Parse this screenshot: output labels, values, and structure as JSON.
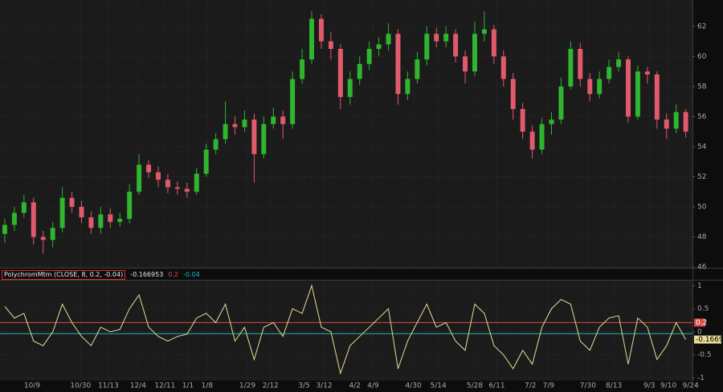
{
  "chart_data": [
    {
      "type": "candlestick",
      "open": [
        48.2,
        48.8,
        49.6,
        50.3,
        48.0,
        47.8,
        48.6,
        50.6,
        50.0,
        49.3,
        48.6,
        49.5,
        49.0,
        49.2,
        51.0,
        52.8,
        52.3,
        51.8,
        51.3,
        51.2,
        51.0,
        52.2,
        53.8,
        54.5,
        55.5,
        55.3,
        55.8,
        53.5,
        55.5,
        56.0,
        55.5,
        58.5,
        59.8,
        62.5,
        61.0,
        60.5,
        57.3,
        58.5,
        59.5,
        60.5,
        60.8,
        61.5,
        57.5,
        58.5,
        59.8,
        61.5,
        61.0,
        61.5,
        60.0,
        59.0,
        61.5,
        61.8,
        60.0,
        58.5,
        56.5,
        55.0,
        53.8,
        55.5,
        55.8,
        58.0,
        60.5,
        58.5,
        57.5,
        58.5,
        59.3,
        59.8,
        56.0,
        59.0,
        58.8,
        55.8,
        55.2,
        56.3
      ],
      "high": [
        49.2,
        50.0,
        50.8,
        50.6,
        48.4,
        49.0,
        51.3,
        51.0,
        50.4,
        49.7,
        50.0,
        49.9,
        49.6,
        51.5,
        53.5,
        53.1,
        52.7,
        52.2,
        51.7,
        51.6,
        52.6,
        54.2,
        54.9,
        57.0,
        56.0,
        56.4,
        56.2,
        56.0,
        56.6,
        56.4,
        59.0,
        60.5,
        63.0,
        62.8,
        61.6,
        60.8,
        59.0,
        60.0,
        61.0,
        61.3,
        62.2,
        61.8,
        59.0,
        60.3,
        62.0,
        61.9,
        62.0,
        61.8,
        60.4,
        62.3,
        63.0,
        62.1,
        60.4,
        58.9,
        56.9,
        55.4,
        55.9,
        56.3,
        58.6,
        61.0,
        60.9,
        58.9,
        59.0,
        59.8,
        60.3,
        60.0,
        59.4,
        59.3,
        59.0,
        56.2,
        56.8,
        56.5
      ],
      "low": [
        47.6,
        48.4,
        49.3,
        47.5,
        46.9,
        47.3,
        48.3,
        49.6,
        48.9,
        48.2,
        48.2,
        48.6,
        48.7,
        48.9,
        50.8,
        51.9,
        51.3,
        50.9,
        50.8,
        50.6,
        50.8,
        52.0,
        53.5,
        54.2,
        54.8,
        55.0,
        51.6,
        53.2,
        55.2,
        54.5,
        55.2,
        58.2,
        59.5,
        60.5,
        59.8,
        56.5,
        56.8,
        58.1,
        59.1,
        60.0,
        60.4,
        56.8,
        57.1,
        58.2,
        59.4,
        60.6,
        60.6,
        59.6,
        58.2,
        58.7,
        61.0,
        59.5,
        58.0,
        55.8,
        54.5,
        53.2,
        53.5,
        54.8,
        55.5,
        57.8,
        58.0,
        57.0,
        57.2,
        58.2,
        59.0,
        55.6,
        55.8,
        58.2,
        55.2,
        54.5,
        54.9,
        54.6
      ],
      "close": [
        48.8,
        49.6,
        50.3,
        48.0,
        47.8,
        48.6,
        50.6,
        50.0,
        49.3,
        48.6,
        49.5,
        49.0,
        49.2,
        51.0,
        52.8,
        52.3,
        51.8,
        51.3,
        51.2,
        51.0,
        52.2,
        53.8,
        54.5,
        55.5,
        55.3,
        55.8,
        53.5,
        55.5,
        56.0,
        55.5,
        58.5,
        59.8,
        62.5,
        61.0,
        60.5,
        57.3,
        58.5,
        59.5,
        60.5,
        60.8,
        61.5,
        57.5,
        58.5,
        59.8,
        61.5,
        61.0,
        61.5,
        60.0,
        59.0,
        61.5,
        61.8,
        60.0,
        58.5,
        56.5,
        55.0,
        53.8,
        55.5,
        55.8,
        58.0,
        60.5,
        58.5,
        57.5,
        58.5,
        59.3,
        59.8,
        56.0,
        59.0,
        58.8,
        55.8,
        55.2,
        56.3,
        55.0
      ],
      "up_color": "#2fb52f",
      "down_color": "#e05a6c",
      "xlim": [
        -0.5,
        71.7
      ],
      "xticks": [
        {
          "value": 2.85,
          "label": "10/9"
        },
        {
          "value": 7.9,
          "label": "10/30"
        },
        {
          "value": 10.8,
          "label": "11/13"
        },
        {
          "value": 13.9,
          "label": "12/4"
        },
        {
          "value": 16.7,
          "label": "12/11"
        },
        {
          "value": 19.1,
          "label": "1/1"
        },
        {
          "value": 21.1,
          "label": "1/8"
        },
        {
          "value": 25.3,
          "label": "1/29"
        },
        {
          "value": 27.7,
          "label": "2/12"
        },
        {
          "value": 31.2,
          "label": "3/5"
        },
        {
          "value": 33.3,
          "label": "3/12"
        },
        {
          "value": 36.5,
          "label": "4/2"
        },
        {
          "value": 38.4,
          "label": "4/9"
        },
        {
          "value": 42.6,
          "label": "4/30"
        },
        {
          "value": 45.2,
          "label": "5/14"
        },
        {
          "value": 49.0,
          "label": "5/28"
        },
        {
          "value": 51.3,
          "label": "6/11"
        },
        {
          "value": 54.8,
          "label": "7/2"
        },
        {
          "value": 56.7,
          "label": "7/9"
        },
        {
          "value": 60.8,
          "label": "7/30"
        },
        {
          "value": 63.5,
          "label": "8/13"
        },
        {
          "value": 67.2,
          "label": "9/3"
        },
        {
          "value": 69.2,
          "label": "9/10"
        },
        {
          "value": 71.5,
          "label": "9/24"
        }
      ],
      "ylim": [
        45.95,
        63.75
      ],
      "yticks": [
        46,
        48,
        50,
        52,
        54,
        56,
        58,
        60,
        62
      ],
      "grid": true
    },
    {
      "type": "line",
      "title": "PolychromMtm (CLOSE, 8, 0.2, -0.04)",
      "values": [
        0.55,
        0.3,
        0.4,
        -0.2,
        -0.3,
        0.0,
        0.6,
        0.2,
        -0.1,
        -0.3,
        0.1,
        0.0,
        0.05,
        0.5,
        0.8,
        0.1,
        -0.1,
        -0.2,
        -0.1,
        -0.05,
        0.3,
        0.4,
        0.2,
        0.6,
        -0.2,
        0.1,
        -0.6,
        0.1,
        0.2,
        -0.1,
        0.5,
        0.4,
        1.0,
        0.1,
        0.0,
        -0.9,
        -0.3,
        -0.1,
        0.1,
        0.3,
        0.5,
        -0.8,
        -0.2,
        0.2,
        0.6,
        0.1,
        0.2,
        -0.2,
        -0.4,
        0.6,
        0.4,
        -0.3,
        -0.5,
        -0.8,
        -0.4,
        -0.7,
        0.1,
        0.5,
        0.7,
        0.6,
        -0.2,
        -0.4,
        0.1,
        0.3,
        0.35,
        -0.7,
        0.3,
        0.1,
        -0.6,
        -0.3,
        0.2,
        -0.166953
      ],
      "last_value_label": "-0.1669",
      "color": "#e8dc98",
      "levels": [
        {
          "value": 0.2,
          "color": "#e04a4a"
        },
        {
          "value": -0.04,
          "color": "#22b4b4"
        }
      ],
      "xlim": [
        -0.5,
        71.7
      ],
      "ylim": [
        -1.06,
        1.11
      ],
      "yticks": [
        -1,
        -0.5,
        0,
        0.5,
        1
      ],
      "grid": true
    }
  ]
}
